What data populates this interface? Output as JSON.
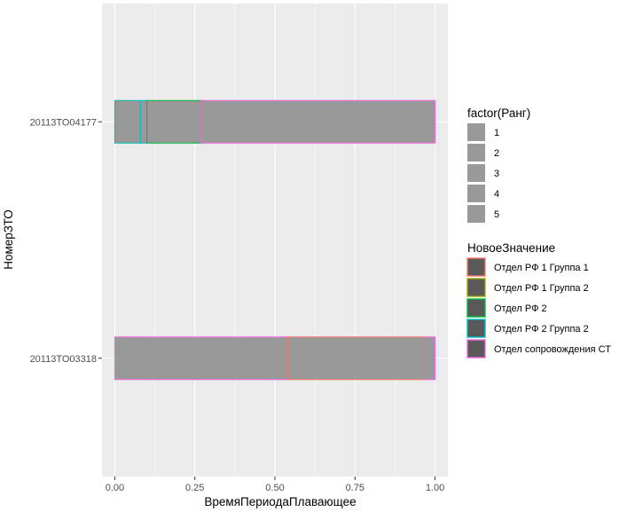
{
  "chart_data": {
    "type": "bar",
    "orientation": "horizontal",
    "stacked": true,
    "xlabel": "ВремяПериодаПлавающее",
    "ylabel": "НомерЗТО",
    "xlim": [
      -0.04,
      1.04
    ],
    "xticks": [
      0.0,
      0.25,
      0.5,
      0.75,
      1.0
    ],
    "xtick_labels": [
      "0.00",
      "0.25",
      "0.50",
      "0.75",
      "1.00"
    ],
    "categories": [
      "20113TO04177",
      "20113TO03318"
    ],
    "segments": [
      {
        "category": "20113TO04177",
        "start": 0.0,
        "end": 0.08,
        "color": "#00bfc4",
        "group": "Отдел РФ 2 Группа 2"
      },
      {
        "category": "20113TO04177",
        "start": 0.08,
        "end": 0.1,
        "color": "#00bfc4",
        "group": "Отдел РФ 2 Группа 2"
      },
      {
        "category": "20113TO04177",
        "start": 0.1,
        "end": 0.27,
        "color": "#00ba38",
        "group": "Отдел РФ 2"
      },
      {
        "category": "20113TO04177",
        "start": 0.27,
        "end": 1.0,
        "color": "#f564e3",
        "group": "Отдел сопровождения СТ"
      },
      {
        "category": "20113TO03318",
        "start": 0.0,
        "end": 0.54,
        "color": "#f564e3",
        "group": "Отдел сопровождения СТ"
      },
      {
        "category": "20113TO03318",
        "start": 0.54,
        "end": 0.97,
        "color": "#f8766d",
        "group": "Отдел РФ 1 Группа 1"
      },
      {
        "category": "20113TO03318",
        "start": 0.97,
        "end": 1.0,
        "color": "#f564e3",
        "group": "Отдел сопровождения СТ"
      }
    ],
    "legend_position": "right",
    "legends": [
      {
        "title": "factor(Ранг)",
        "kind": "fill",
        "entries": [
          {
            "label": "1",
            "fill": "#999999",
            "stroke": "none"
          },
          {
            "label": "2",
            "fill": "#999999",
            "stroke": "none"
          },
          {
            "label": "3",
            "fill": "#999999",
            "stroke": "none"
          },
          {
            "label": "4",
            "fill": "#999999",
            "stroke": "none"
          },
          {
            "label": "5",
            "fill": "#999999",
            "stroke": "none"
          }
        ]
      },
      {
        "title": "НовоеЗначение",
        "kind": "color",
        "entries": [
          {
            "label": "Отдел РФ 1 Группа 1",
            "fill": "#595959",
            "stroke": "#f8766d"
          },
          {
            "label": "Отдел РФ 1 Группа 2",
            "fill": "#595959",
            "stroke": "#a3a500"
          },
          {
            "label": "Отдел РФ 2",
            "fill": "#595959",
            "stroke": "#00ba38"
          },
          {
            "label": "Отдел РФ 2 Группа 2",
            "fill": "#595959",
            "stroke": "#00bfc4"
          },
          {
            "label": "Отдел сопровождения СТ",
            "fill": "#595959",
            "stroke": "#f564e3"
          }
        ]
      }
    ],
    "panel_background": "#ebebeb",
    "bar_fill": "#999999",
    "grid": true
  }
}
